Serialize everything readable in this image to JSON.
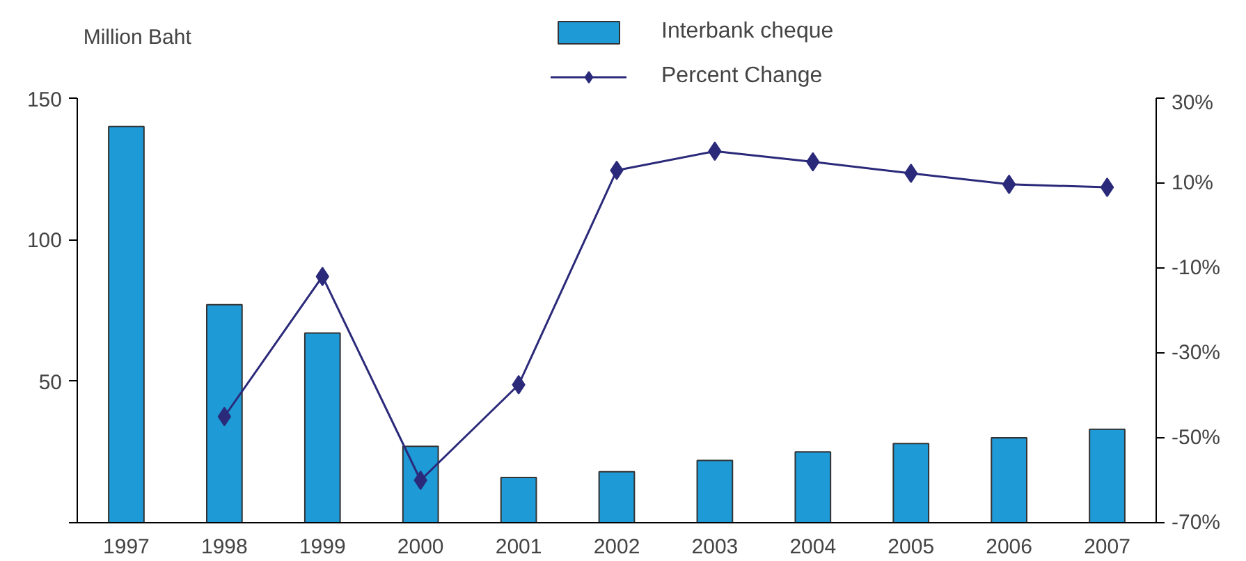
{
  "chart_data": {
    "type": "bar",
    "ylabel": "Million Baht",
    "categories": [
      "1997",
      "1998",
      "1999",
      "2000",
      "2001",
      "2002",
      "2003",
      "2004",
      "2005",
      "2006",
      "2007"
    ],
    "series": [
      {
        "name": "Interbank cheque",
        "color": "#1e9ad6",
        "values": [
          140,
          77,
          67,
          27,
          16,
          18,
          22,
          25,
          28,
          30,
          33
        ]
      },
      {
        "name": "Percent Change",
        "type": "line",
        "axis": "y2",
        "color": "#2b2a7a",
        "marker": "diamond",
        "values": [
          null,
          -45,
          -12,
          -60,
          -37.5,
          13,
          17.5,
          15,
          12.3,
          9.7,
          9
        ]
      }
    ],
    "ylim": [
      0,
      150
    ],
    "yticks": [
      {
        "value": 0,
        "label": null
      },
      50,
      100,
      150
    ],
    "y2lim": [
      -70,
      30
    ],
    "y2ticks": [
      {
        "value": -70,
        "label": "-70%"
      },
      {
        "value": -50,
        "label": "-50%"
      },
      {
        "value": -30,
        "label": "-30%"
      },
      {
        "value": -10,
        "label": "-10%"
      },
      {
        "value": 10,
        "label": "10%"
      },
      {
        "value": 30,
        "label": "30%"
      }
    ],
    "grid": false,
    "legend": "top"
  }
}
